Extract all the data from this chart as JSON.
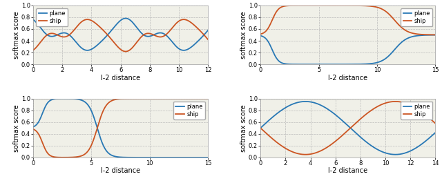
{
  "plots": [
    {
      "xlim": [
        0,
        12
      ],
      "ylim": [
        0,
        1
      ],
      "xticks": [
        0,
        2,
        4,
        6,
        8,
        10,
        12
      ],
      "yticks": [
        0,
        0.2,
        0.4,
        0.6,
        0.8,
        1.0
      ],
      "xlabel": "l-2 distance",
      "ylabel": "softmax score",
      "legend_loc": "upper left"
    },
    {
      "xlim": [
        0,
        15
      ],
      "ylim": [
        0,
        1
      ],
      "xticks": [
        0,
        5,
        10,
        15
      ],
      "yticks": [
        0,
        0.2,
        0.4,
        0.6,
        0.8,
        1.0
      ],
      "xlabel": "l-2 distance",
      "ylabel": "softmax score",
      "legend_loc": "upper right"
    },
    {
      "xlim": [
        0,
        15
      ],
      "ylim": [
        0,
        1
      ],
      "xticks": [
        0,
        5,
        10,
        15
      ],
      "yticks": [
        0,
        0.2,
        0.4,
        0.6,
        0.8,
        1.0
      ],
      "xlabel": "l-2 distance",
      "ylabel": "softmax score",
      "legend_loc": "upper right"
    },
    {
      "xlim": [
        0,
        14
      ],
      "ylim": [
        0,
        1
      ],
      "xticks": [
        0,
        2,
        4,
        6,
        8,
        10,
        12,
        14
      ],
      "yticks": [
        0,
        0.2,
        0.4,
        0.6,
        0.8,
        1.0
      ],
      "xlabel": "l-2 distance",
      "ylabel": "softmax score",
      "legend_loc": "upper right"
    }
  ],
  "blue_color": "#2878b5",
  "orange_color": "#cc5522",
  "bg_color": "#f0f0e8",
  "grid_color": "#bbbbbb",
  "line_width": 1.3,
  "font_size": 6
}
